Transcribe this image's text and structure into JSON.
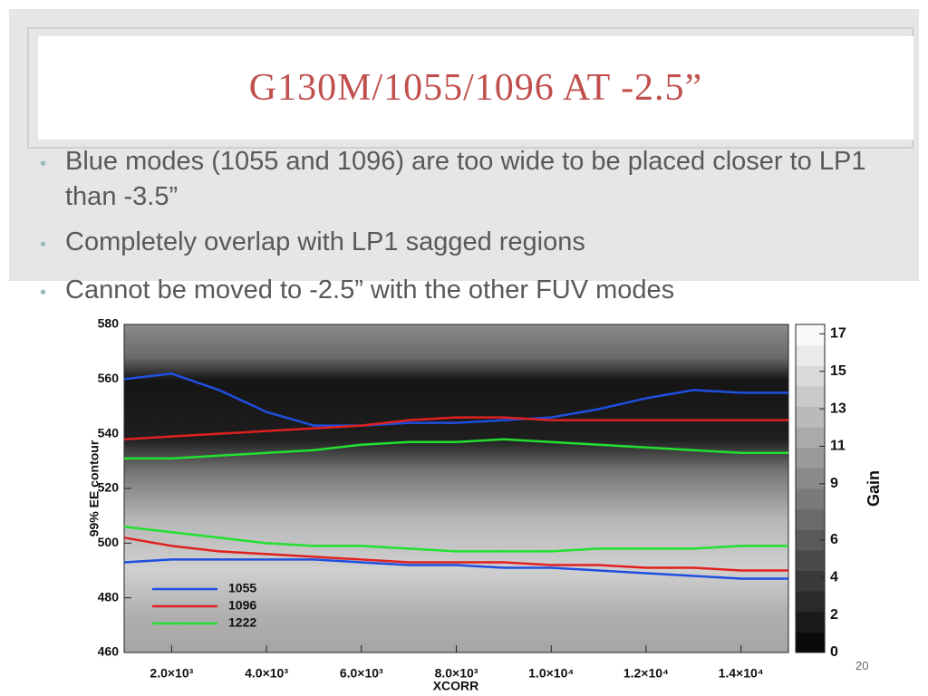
{
  "slide": {
    "title": "G130M/1055/1096 at -2.5”",
    "bullets": [
      "Blue modes (1055 and 1096) are too wide to be placed closer to LP1 than -3.5”",
      "Completely overlap with LP1 sagged regions",
      "Cannot be moved to -2.5” with the other FUV modes"
    ],
    "page_number": "20"
  },
  "chart_data": {
    "type": "line",
    "x_label": "XCORR",
    "y_label": "99% EE contour",
    "x": [
      1000,
      2000,
      3000,
      4000,
      5000,
      6000,
      7000,
      8000,
      9000,
      10000,
      11000,
      12000,
      13000,
      14000,
      15000
    ],
    "xlim": [
      1000,
      15000
    ],
    "xticks": [
      {
        "value": 2000,
        "label": "2.0×10³"
      },
      {
        "value": 4000,
        "label": "4.0×10³"
      },
      {
        "value": 6000,
        "label": "6.0×10³"
      },
      {
        "value": 8000,
        "label": "8.0×10³"
      },
      {
        "value": 10000,
        "label": "1.0×10⁴"
      },
      {
        "value": 12000,
        "label": "1.2×10⁴"
      },
      {
        "value": 14000,
        "label": "1.4×10⁴"
      }
    ],
    "ylim": [
      460,
      580
    ],
    "yticks": [
      460,
      480,
      500,
      520,
      540,
      560,
      580
    ],
    "series": [
      {
        "name": "1055",
        "color": "#1f4fe0",
        "upper": [
          560,
          562,
          556,
          548,
          543,
          543,
          544,
          544,
          545,
          546,
          549,
          553,
          556,
          555,
          555
        ],
        "lower": [
          493,
          494,
          494,
          494,
          494,
          493,
          492,
          492,
          491,
          491,
          490,
          489,
          488,
          487,
          487
        ]
      },
      {
        "name": "1096",
        "color": "#e02020",
        "upper": [
          538,
          539,
          540,
          541,
          542,
          543,
          545,
          546,
          546,
          545,
          545,
          545,
          545,
          545,
          545
        ],
        "lower": [
          502,
          499,
          497,
          496,
          495,
          494,
          493,
          493,
          493,
          492,
          492,
          491,
          491,
          490,
          490
        ]
      },
      {
        "name": "1222",
        "color": "#22e030",
        "upper": [
          531,
          531,
          532,
          533,
          534,
          536,
          537,
          537,
          538,
          537,
          536,
          535,
          534,
          533,
          533
        ],
        "lower": [
          506,
          504,
          502,
          500,
          499,
          499,
          498,
          497,
          497,
          497,
          498,
          498,
          498,
          499,
          499
        ]
      }
    ],
    "colorbar": {
      "label": "Gain",
      "lim": [
        0,
        17.5
      ],
      "ticks": [
        0,
        2,
        4,
        6,
        9,
        11,
        13,
        15,
        17
      ]
    }
  }
}
